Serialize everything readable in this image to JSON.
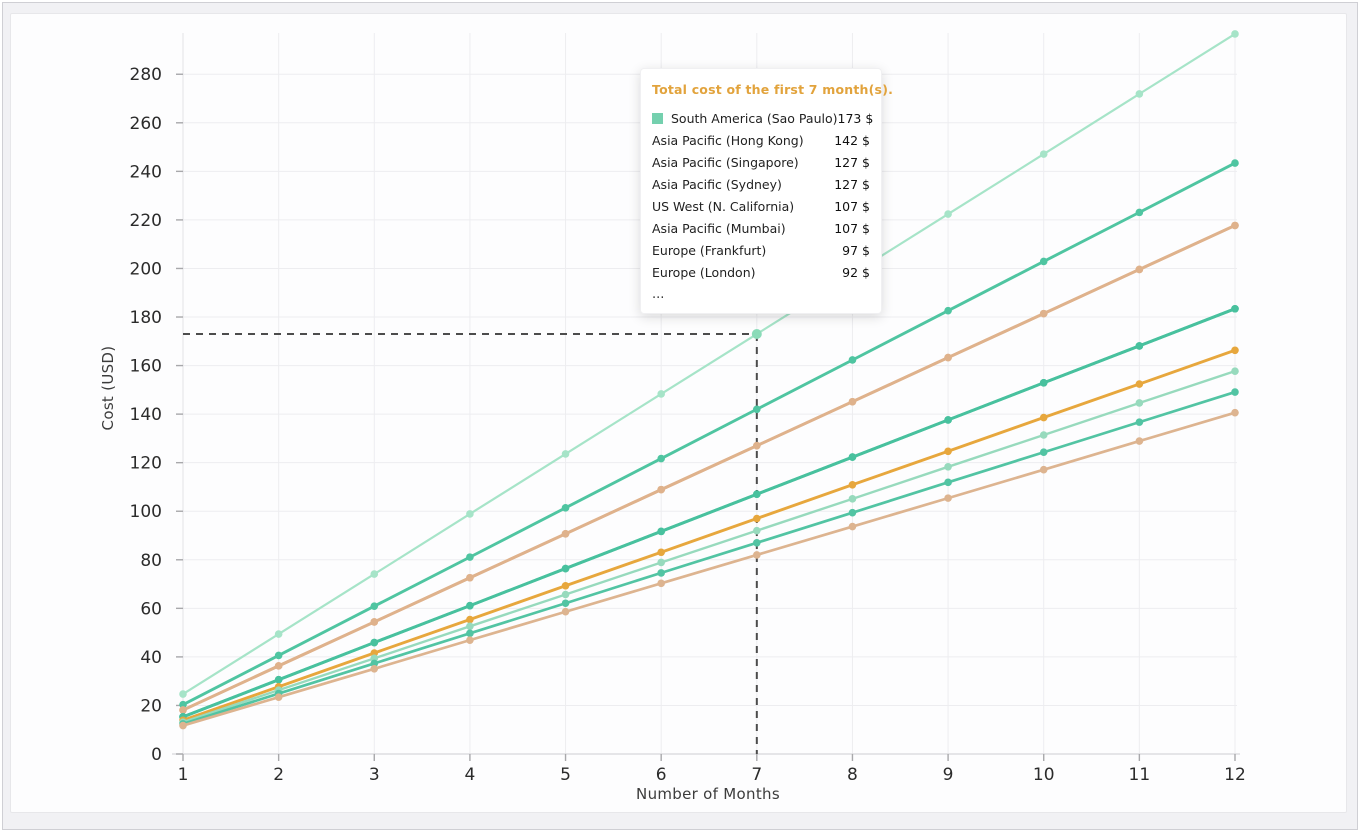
{
  "chart_data": {
    "type": "line",
    "xlabel": "Number of Months",
    "ylabel": "Cost (USD)",
    "x": [
      1,
      2,
      3,
      4,
      5,
      6,
      7,
      8,
      9,
      10,
      11,
      12
    ],
    "xticks": [
      1,
      2,
      3,
      4,
      5,
      6,
      7,
      8,
      9,
      10,
      11,
      12
    ],
    "yticks": [
      0,
      20,
      40,
      60,
      80,
      100,
      120,
      140,
      160,
      180,
      200,
      220,
      240,
      260,
      280
    ],
    "xlim": [
      1,
      12
    ],
    "ylim": [
      0,
      300
    ],
    "grid": true,
    "legend_position": "none",
    "tooltip_truncated": true,
    "series": [
      {
        "name": "South America (Sao Paulo)",
        "color": "#a6e4c8",
        "line_width": 2.2,
        "monthly_rate": 24.71,
        "total_7_months": 173,
        "values": [
          24.7,
          49.4,
          74.1,
          98.9,
          123.6,
          148.3,
          173.0,
          197.7,
          222.4,
          247.1,
          271.9,
          296.6
        ]
      },
      {
        "name": "Asia Pacific (Hong Kong)",
        "color": "#4fc5a1",
        "line_width": 2.9,
        "monthly_rate": 20.29,
        "total_7_months": 142,
        "values": [
          20.3,
          40.6,
          60.9,
          81.1,
          101.4,
          121.7,
          142.0,
          162.3,
          182.6,
          202.9,
          223.1,
          243.4
        ]
      },
      {
        "name": "Asia Pacific (Singapore)",
        "color": "#dfb28c",
        "line_width": 2.9,
        "monthly_rate": 18.14,
        "total_7_months": 127,
        "values": [
          18.1,
          36.3,
          54.4,
          72.6,
          90.7,
          108.9,
          127.0,
          145.1,
          163.3,
          181.4,
          199.6,
          217.7
        ]
      },
      {
        "name": "Asia Pacific (Sydney)",
        "color": "#dfb28c",
        "line_width": 2.9,
        "monthly_rate": 18.14,
        "total_7_months": 127,
        "values": [
          18.1,
          36.3,
          54.4,
          72.6,
          90.7,
          108.9,
          127.0,
          145.1,
          163.3,
          181.4,
          199.6,
          217.7
        ]
      },
      {
        "name": "US West (N. California)",
        "color": "#48c19e",
        "line_width": 2.9,
        "monthly_rate": 15.29,
        "total_7_months": 107,
        "values": [
          15.3,
          30.6,
          45.9,
          61.1,
          76.4,
          91.7,
          107.0,
          122.3,
          137.6,
          152.9,
          168.1,
          183.4
        ]
      },
      {
        "name": "Asia Pacific (Mumbai)",
        "color": "#48c19e",
        "line_width": 2.9,
        "monthly_rate": 15.29,
        "total_7_months": 107,
        "values": [
          15.3,
          30.6,
          45.9,
          61.1,
          76.4,
          91.7,
          107.0,
          122.3,
          137.6,
          152.9,
          168.1,
          183.4
        ]
      },
      {
        "name": "Europe (Frankfurt)",
        "color": "#e7a73d",
        "line_width": 2.9,
        "monthly_rate": 13.86,
        "total_7_months": 97,
        "values": [
          13.9,
          27.7,
          41.6,
          55.4,
          69.3,
          83.1,
          97.0,
          110.9,
          124.7,
          138.6,
          152.4,
          166.3
        ]
      },
      {
        "name": "Europe (London)",
        "color": "#97dabd",
        "line_width": 2.4,
        "monthly_rate": 13.14,
        "total_7_months": 92,
        "values": [
          13.1,
          26.3,
          39.4,
          52.6,
          65.7,
          78.9,
          92.0,
          105.1,
          118.3,
          131.4,
          144.6,
          157.7
        ]
      },
      {
        "name": "",
        "color": "#52c4a3",
        "line_width": 2.7,
        "monthly_rate": 12.43,
        "total_7_months": 87,
        "values": [
          12.4,
          24.9,
          37.3,
          49.7,
          62.1,
          74.6,
          87.0,
          99.4,
          111.9,
          124.3,
          136.7,
          149.1
        ]
      },
      {
        "name": "",
        "color": "#ddb490",
        "line_width": 2.7,
        "monthly_rate": 11.71,
        "total_7_months": 82,
        "values": [
          11.7,
          23.4,
          35.1,
          46.9,
          58.6,
          70.3,
          82.0,
          93.7,
          105.4,
          117.1,
          128.9,
          140.6
        ]
      }
    ]
  },
  "crosshair": {
    "month": 7,
    "value": 173,
    "color": "#4c4c4c"
  },
  "tooltip": {
    "title": "Total cost of the first 7 month(s).",
    "title_color": "#e2a33c",
    "rows": [
      {
        "label": "South America (Sao Paulo)",
        "value": "173 $",
        "swatch": "#74d0ae"
      },
      {
        "label": "Asia Pacific (Hong Kong)",
        "value": "142 $"
      },
      {
        "label": "Asia Pacific (Singapore)",
        "value": "127 $"
      },
      {
        "label": "Asia Pacific (Sydney)",
        "value": "127 $"
      },
      {
        "label": "US West (N. California)",
        "value": "107 $"
      },
      {
        "label": "Asia Pacific (Mumbai)",
        "value": "107 $"
      },
      {
        "label": "Europe (Frankfurt)",
        "value": "97 $"
      },
      {
        "label": "Europe (London)",
        "value": "92 $"
      }
    ],
    "more_indicator": "..."
  },
  "theme": {
    "grid_color": "#ededf0",
    "axis_color": "#d7d7da",
    "tick_color": "#a8a8ab",
    "tick_label_color": "#2b2b2b",
    "card_background": "#fdfdfe",
    "page_background": "#f1f1f4"
  }
}
